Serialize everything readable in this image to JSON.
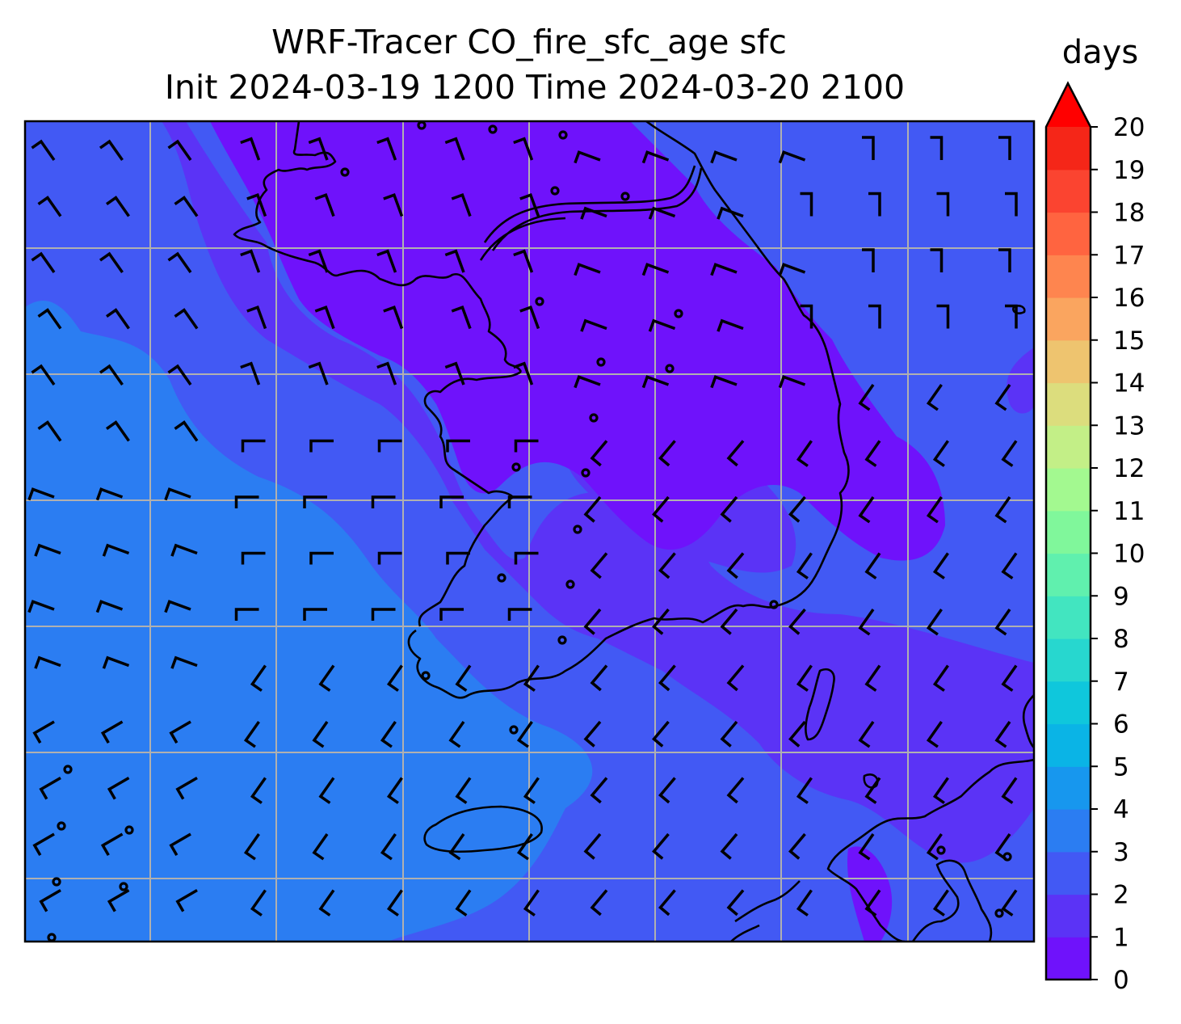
{
  "title": {
    "line1": "WRF-Tracer CO_fire_sfc_age sfc",
    "line2": "Init 2024-03-19 1200 Time 2024-03-20 2100"
  },
  "colorbar": {
    "unit": "days",
    "min": 0,
    "max": 20,
    "extend": "max",
    "ticks": [
      "0",
      "1",
      "2",
      "3",
      "4",
      "5",
      "6",
      "7",
      "8",
      "9",
      "10",
      "11",
      "12",
      "13",
      "14",
      "15",
      "16",
      "17",
      "18",
      "19",
      "20"
    ],
    "colors": [
      "#6f12fb",
      "#5b33f6",
      "#4259f4",
      "#2b7df2",
      "#1797ee",
      "#0ab4e6",
      "#0fc7dc",
      "#27d7cf",
      "#42e5c0",
      "#60f0ae",
      "#80f79b",
      "#a3f990",
      "#c3ef87",
      "#dcdd7d",
      "#eec46f",
      "#faa55f",
      "#fe854f",
      "#ff6440",
      "#fb4430",
      "#f52618"
    ],
    "extend_color": "#ff0000"
  },
  "map": {
    "field_colors": {
      "band_0_1": "#6f12fb",
      "band_1_2": "#5b33f6",
      "band_2_3": "#4259f4",
      "band_3_4": "#2b7df2"
    },
    "gridlines": true,
    "wind_barbs": true,
    "coastlines": true
  }
}
